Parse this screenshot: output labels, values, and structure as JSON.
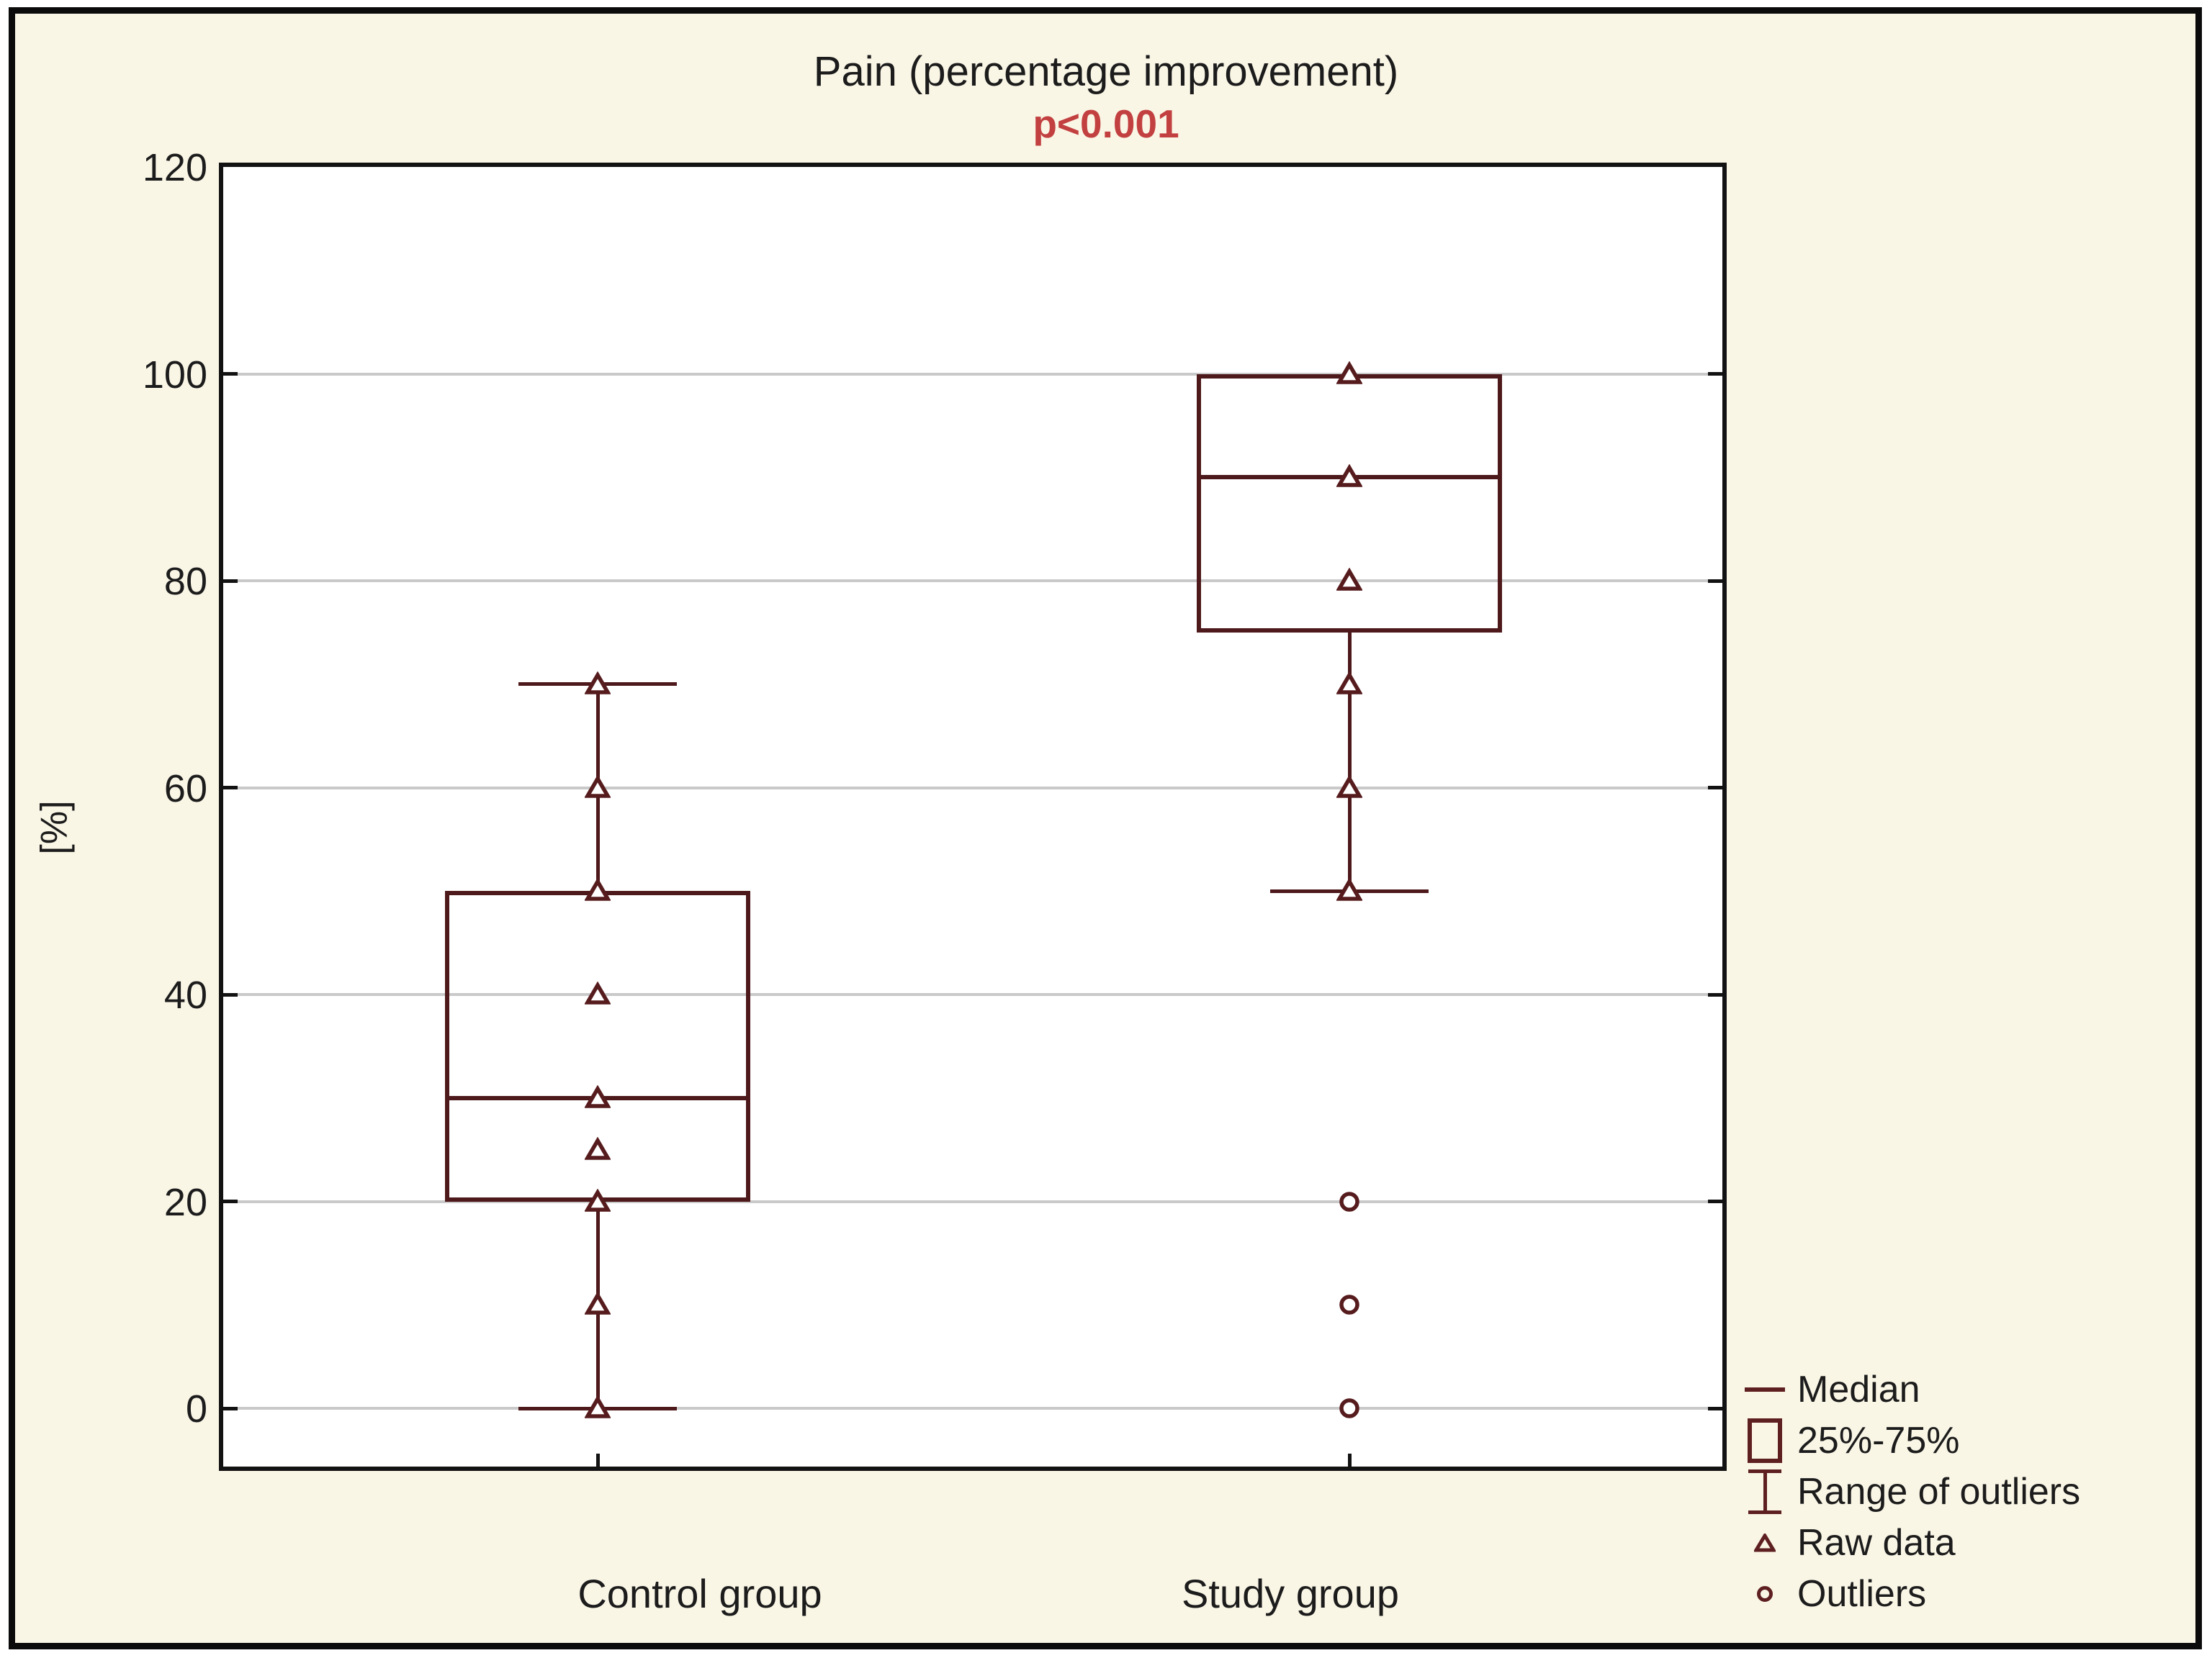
{
  "chart_data": {
    "type": "box",
    "title": "Pain (percentage improvement)",
    "p_value": "p<0.001",
    "y_axis": {
      "label": "[%]",
      "min": 0,
      "max": 120,
      "tick_step": 20,
      "ticks": [
        120,
        100,
        80,
        60,
        40,
        20,
        0
      ]
    },
    "categories": [
      "Control group",
      "Study group"
    ],
    "groups": [
      {
        "label": "Control group",
        "q1": 20,
        "median": 30,
        "q3": 50,
        "whisker_low": 0,
        "whisker_high": 70,
        "raw_data": [
          0,
          10,
          20,
          25,
          30,
          40,
          50,
          60,
          70
        ],
        "outliers": []
      },
      {
        "label": "Study group",
        "q1": 75,
        "median": 90,
        "q3": 100,
        "whisker_low": 50,
        "whisker_high": 100,
        "raw_data": [
          50,
          60,
          70,
          80,
          90,
          100
        ],
        "outliers": [
          0,
          10,
          20
        ]
      }
    ],
    "legend": [
      {
        "marker": "median-line",
        "label": "Median"
      },
      {
        "marker": "box",
        "label": "25%-75%"
      },
      {
        "marker": "whisker",
        "label": "Range of outliers"
      },
      {
        "marker": "triangle",
        "label": "Raw data"
      },
      {
        "marker": "circle",
        "label": "Outliers"
      }
    ],
    "layout_hints": {
      "grid": "horizontal",
      "legend_position": "bottom-right",
      "plot_background": "white"
    },
    "colors": {
      "series_line": "#4e191b",
      "marker": "#561b1d",
      "legend_icon": "#5e1f21",
      "p_value_text": "#c24040",
      "gridline": "#c9c9c9",
      "axis": "#121212",
      "text": "#1c1c1c",
      "canvas_background": "#faf6e6",
      "plot_background": "#ffffff"
    }
  }
}
